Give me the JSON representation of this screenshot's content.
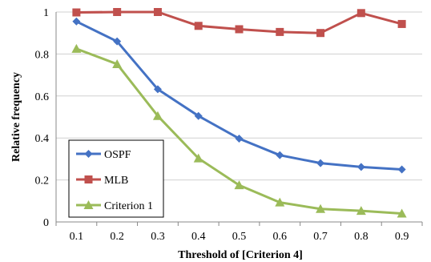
{
  "chart_data": {
    "type": "line",
    "x": [
      "0.1",
      "0.2",
      "0.3",
      "0.4",
      "0.5",
      "0.6",
      "0.7",
      "0.8",
      "0.9"
    ],
    "ylim": [
      0,
      1
    ],
    "yticks": [
      "0",
      "0.2",
      "0.4",
      "0.6",
      "0.8",
      "1"
    ],
    "title": "",
    "xlabel": "Threshold of  [Criterion 4]",
    "ylabel": "Relative frequency",
    "grid": "horizontal",
    "legend": "bottom-left",
    "series": [
      {
        "name": "OSPF",
        "color": "#4472c4",
        "marker": "diamond",
        "values": [
          0.955,
          0.86,
          0.632,
          0.505,
          0.397,
          0.318,
          0.28,
          0.262,
          0.25
        ]
      },
      {
        "name": "MLB",
        "color": "#c0504d",
        "marker": "square",
        "values": [
          0.998,
          1.0,
          1.0,
          0.934,
          0.918,
          0.905,
          0.9,
          0.995,
          0.943
        ]
      },
      {
        "name": "Criterion 1",
        "color": "#9bbb59",
        "marker": "triangle",
        "values": [
          0.825,
          0.752,
          0.505,
          0.303,
          0.175,
          0.093,
          0.062,
          0.053,
          0.04
        ]
      }
    ]
  }
}
